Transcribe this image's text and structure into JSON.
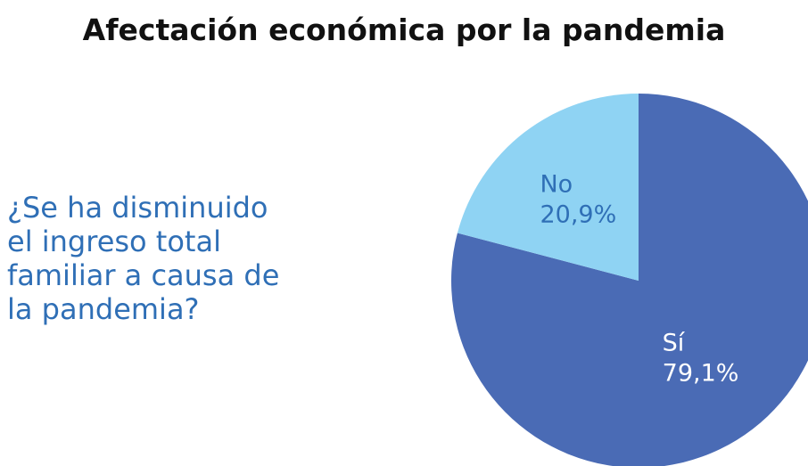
{
  "chart_data": {
    "type": "pie",
    "title": "Afectación económica por la pandemia",
    "question_lines": [
      "¿Se ha disminuido",
      "el ingreso total",
      "familiar a causa de",
      "la pandemia?"
    ],
    "slices": [
      {
        "label": "Sí",
        "value": 79.1,
        "value_text": "79,1%",
        "color": "#4a6bb5",
        "text_color": "#ffffff"
      },
      {
        "label": "No",
        "value": 20.9,
        "value_text": "20,9%",
        "color": "#8fd3f3",
        "text_color": "#2f6fb6"
      }
    ],
    "grid": false,
    "legend": "none"
  }
}
